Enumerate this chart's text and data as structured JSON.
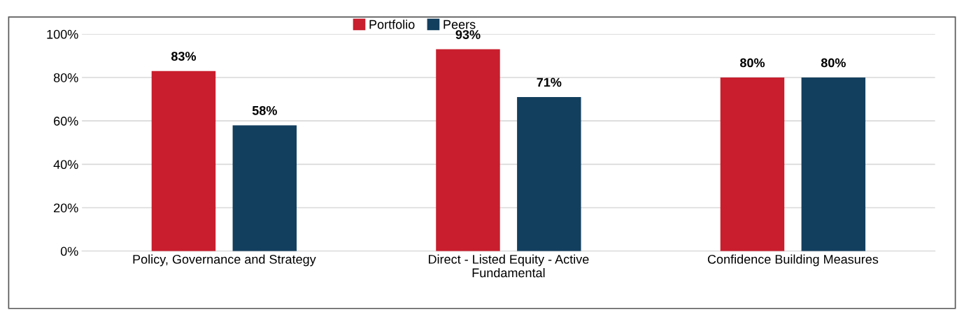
{
  "chart_data": {
    "type": "bar",
    "categories": [
      "Policy, Governance and Strategy",
      "Direct - Listed Equity - Active\nFundamental",
      "Confidence Building Measures"
    ],
    "series": [
      {
        "name": "Portfolio",
        "color": "#c81e2d",
        "values": [
          83,
          93,
          80
        ]
      },
      {
        "name": "Peers",
        "color": "#133f5e",
        "values": [
          58,
          71,
          80
        ]
      }
    ],
    "ylim": [
      0,
      100
    ],
    "yticks": [
      {
        "value": 0,
        "label": "0%"
      },
      {
        "value": 20,
        "label": "20%"
      },
      {
        "value": 40,
        "label": "40%"
      },
      {
        "value": 60,
        "label": "60%"
      },
      {
        "value": 80,
        "label": "80%"
      },
      {
        "value": 100,
        "label": "100%"
      }
    ],
    "value_labels": [
      [
        "83%",
        "93%",
        "80%"
      ],
      [
        "58%",
        "71%",
        "80%"
      ]
    ],
    "grid": "y",
    "legend": "top"
  }
}
